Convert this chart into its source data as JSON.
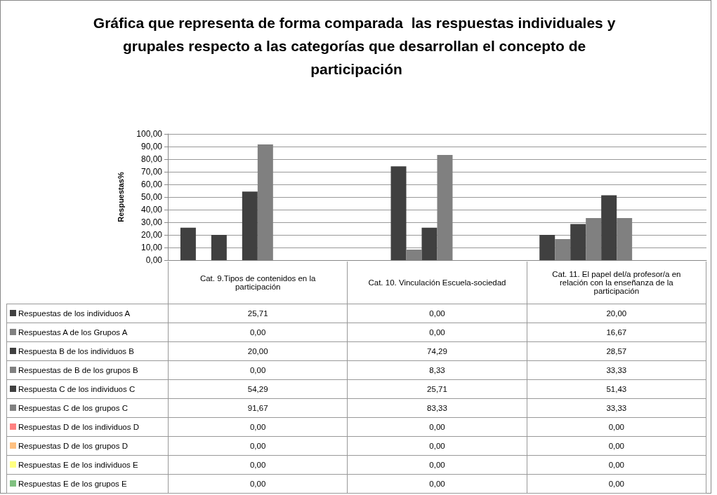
{
  "chart_data": {
    "type": "bar",
    "title": "Gráfica que representa de forma comparada  las respuestas individuales y grupales respecto a las categorías que desarrollan el concepto de participación",
    "ylabel": "Respuestas%",
    "categories": [
      "Cat. 9.Tipos de contenidos en la participación",
      "Cat. 10. Vinculación Escuela-sociedad",
      "Cat. 11. El papel del/a profesor/a en relación con la enseñanza de la participación"
    ],
    "series": [
      {
        "name": "Respuestas de los individuos A",
        "color": "#404040",
        "values": [
          25.71,
          0,
          20
        ],
        "value_labels": [
          "25,71",
          "0,00",
          "20,00"
        ]
      },
      {
        "name": "Respuestas A de los Grupos A",
        "color": "#808080",
        "values": [
          0,
          0,
          16.67
        ],
        "value_labels": [
          "0,00",
          "0,00",
          "16,67"
        ]
      },
      {
        "name": "Respuesta B de los individuos B",
        "color": "#404040",
        "values": [
          20,
          74.29,
          28.57
        ],
        "value_labels": [
          "20,00",
          "74,29",
          "28,57"
        ]
      },
      {
        "name": "Respuestas de B de los grupos B",
        "color": "#808080",
        "values": [
          0,
          8.33,
          33.33
        ],
        "value_labels": [
          "0,00",
          "8,33",
          "33,33"
        ]
      },
      {
        "name": "Respuesta C de los individuos C",
        "color": "#404040",
        "values": [
          54.29,
          25.71,
          51.43
        ],
        "value_labels": [
          "54,29",
          "25,71",
          "51,43"
        ]
      },
      {
        "name": "Respuestas C de los grupos C",
        "color": "#808080",
        "values": [
          91.67,
          83.33,
          33.33
        ],
        "value_labels": [
          "91,67",
          "83,33",
          "33,33"
        ]
      },
      {
        "name": "Respuestas D de los individuos D",
        "color": "#ff8080",
        "values": [
          0,
          0,
          0
        ],
        "value_labels": [
          "0,00",
          "0,00",
          "0,00"
        ]
      },
      {
        "name": "Respuestas D de los grupos D",
        "color": "#ffc080",
        "values": [
          0,
          0,
          0
        ],
        "value_labels": [
          "0,00",
          "0,00",
          "0,00"
        ]
      },
      {
        "name": "Respuestas E de los individuos E",
        "color": "#ffff80",
        "values": [
          0,
          0,
          0
        ],
        "value_labels": [
          "0,00",
          "0,00",
          "0,00"
        ]
      },
      {
        "name": "Respuestas E de los grupos E",
        "color": "#80c080",
        "values": [
          0,
          0,
          0
        ],
        "value_labels": [
          "0,00",
          "0,00",
          "0,00"
        ]
      }
    ],
    "ylim": [
      0,
      100
    ],
    "yticks": [
      {
        "value": 0,
        "label": "0,00"
      },
      {
        "value": 10,
        "label": "10,00"
      },
      {
        "value": 20,
        "label": "20,00"
      },
      {
        "value": 30,
        "label": "30,00"
      },
      {
        "value": 40,
        "label": "40,00"
      },
      {
        "value": 50,
        "label": "50,00"
      },
      {
        "value": 60,
        "label": "60,00"
      },
      {
        "value": 70,
        "label": "70,00"
      },
      {
        "value": 80,
        "label": "80,00"
      },
      {
        "value": 90,
        "label": "90,00"
      },
      {
        "value": 100,
        "label": "100,00"
      }
    ],
    "grid": "y",
    "legend": "bottom"
  }
}
